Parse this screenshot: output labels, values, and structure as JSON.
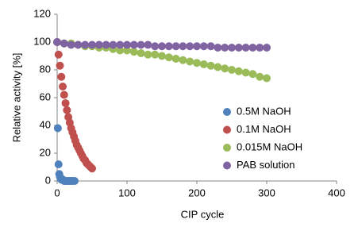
{
  "chart_data": {
    "type": "scatter",
    "x_label": "CIP cycle",
    "y_label": "Relative activity [%]",
    "xlim": [
      0,
      400
    ],
    "xticks": [
      0,
      100,
      200,
      300,
      400
    ],
    "ylim": [
      0,
      120
    ],
    "yticks": [
      0,
      20,
      40,
      60,
      80,
      100,
      120
    ],
    "legend": "right",
    "series": [
      {
        "name": "0.5M NaOH",
        "color": "#4f81bd",
        "x": [
          0,
          1,
          2,
          3,
          4,
          5,
          6,
          8,
          10,
          12,
          14,
          16,
          18,
          20,
          22,
          25
        ],
        "values": [
          100,
          38,
          12,
          5,
          3,
          2,
          1,
          1,
          0,
          0,
          0,
          0,
          0,
          0,
          0,
          0
        ]
      },
      {
        "name": "0.1M NaOH",
        "color": "#c0504d",
        "x": [
          0,
          2,
          4,
          6,
          8,
          10,
          12,
          14,
          16,
          18,
          20,
          22,
          24,
          26,
          28,
          30,
          32,
          34,
          36,
          38,
          40,
          42,
          44,
          46,
          48,
          50
        ],
        "values": [
          100,
          91,
          83,
          75,
          68,
          62,
          56,
          51,
          46,
          42,
          38,
          35,
          32,
          29,
          26,
          24,
          22,
          20,
          18,
          16,
          15,
          13,
          12,
          11,
          10,
          9
        ]
      },
      {
        "name": "0.015M NaOH",
        "color": "#9bbb59",
        "x": [
          0,
          10,
          20,
          30,
          40,
          50,
          60,
          70,
          80,
          90,
          100,
          110,
          120,
          130,
          140,
          150,
          160,
          170,
          180,
          190,
          200,
          210,
          220,
          230,
          240,
          250,
          260,
          270,
          280,
          290,
          300
        ],
        "values": [
          100,
          99,
          99,
          98,
          97,
          97,
          96,
          96,
          95,
          94,
          94,
          93,
          92,
          91,
          91,
          90,
          89,
          88,
          87,
          86,
          85,
          84,
          83,
          82,
          81,
          80,
          79,
          78,
          77,
          75,
          74
        ]
      },
      {
        "name": "PAB solution",
        "color": "#8064a2",
        "x": [
          0,
          10,
          20,
          30,
          40,
          50,
          60,
          70,
          80,
          90,
          100,
          110,
          120,
          130,
          140,
          150,
          160,
          170,
          180,
          190,
          200,
          210,
          220,
          230,
          240,
          250,
          260,
          270,
          280,
          290,
          300
        ],
        "values": [
          100,
          99,
          98,
          98,
          98,
          98,
          98,
          98,
          98,
          98,
          98,
          98,
          98,
          98,
          97,
          97,
          97,
          97,
          97,
          97,
          97,
          97,
          97,
          96,
          96,
          96,
          96,
          96,
          96,
          96,
          96
        ]
      }
    ]
  }
}
